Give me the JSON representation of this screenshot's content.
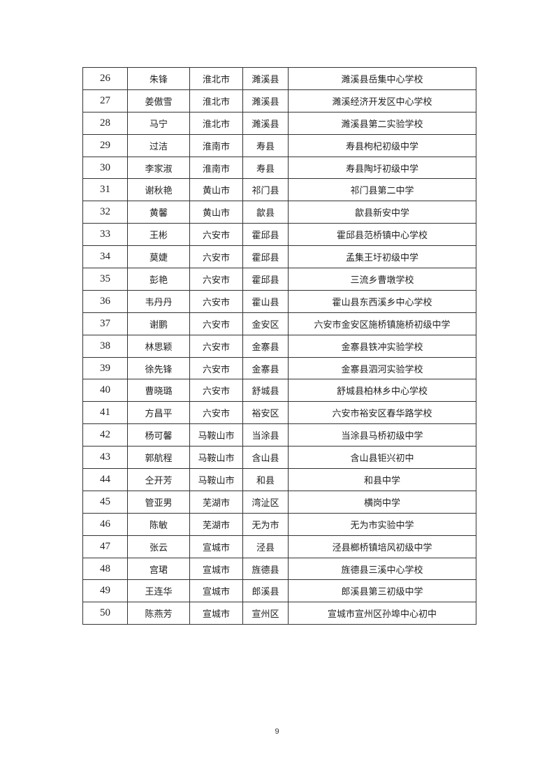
{
  "table": {
    "rows": [
      [
        "26",
        "朱锋",
        "淮北市",
        "濉溪县",
        "濉溪县岳集中心学校"
      ],
      [
        "27",
        "姜傲雪",
        "淮北市",
        "濉溪县",
        "濉溪经济开发区中心学校"
      ],
      [
        "28",
        "马宁",
        "淮北市",
        "濉溪县",
        "濉溪县第二实验学校"
      ],
      [
        "29",
        "过洁",
        "淮南市",
        "寿县",
        "寿县枸杞初级中学"
      ],
      [
        "30",
        "李家淑",
        "淮南市",
        "寿县",
        "寿县陶圩初级中学"
      ],
      [
        "31",
        "谢秋艳",
        "黄山市",
        "祁门县",
        "祁门县第二中学"
      ],
      [
        "32",
        "黄馨",
        "黄山市",
        "歙县",
        "歙县新安中学"
      ],
      [
        "33",
        "王彬",
        "六安市",
        "霍邱县",
        "霍邱县范桥镇中心学校"
      ],
      [
        "34",
        "莫婕",
        "六安市",
        "霍邱县",
        "孟集王圩初级中学"
      ],
      [
        "35",
        "彭艳",
        "六安市",
        "霍邱县",
        "三流乡曹墩学校"
      ],
      [
        "36",
        "韦丹丹",
        "六安市",
        "霍山县",
        "霍山县东西溪乡中心学校"
      ],
      [
        "37",
        "谢鹏",
        "六安市",
        "金安区",
        "六安市金安区施桥镇施桥初级中学"
      ],
      [
        "38",
        "林思颖",
        "六安市",
        "金寨县",
        "金寨县铁冲实验学校"
      ],
      [
        "39",
        "徐先锋",
        "六安市",
        "金寨县",
        "金寨县泗河实验学校"
      ],
      [
        "40",
        "曹晓璐",
        "六安市",
        "舒城县",
        "舒城县柏林乡中心学校"
      ],
      [
        "41",
        "方昌平",
        "六安市",
        "裕安区",
        "六安市裕安区春华路学校"
      ],
      [
        "42",
        "杨可馨",
        "马鞍山市",
        "当涂县",
        "当涂县马桥初级中学"
      ],
      [
        "43",
        "郭航程",
        "马鞍山市",
        "含山县",
        "含山县钜兴初中"
      ],
      [
        "44",
        "仝开芳",
        "马鞍山市",
        "和县",
        "和县中学"
      ],
      [
        "45",
        "管亚男",
        "芜湖市",
        "湾沚区",
        "横岗中学"
      ],
      [
        "46",
        "陈敏",
        "芜湖市",
        "无为市",
        "无为市实验中学"
      ],
      [
        "47",
        "张云",
        "宣城市",
        "泾县",
        "泾县榔桥镇培风初级中学"
      ],
      [
        "48",
        "宫珺",
        "宣城市",
        "旌德县",
        "旌德县三溪中心学校"
      ],
      [
        "49",
        "王连华",
        "宣城市",
        "郎溪县",
        "郎溪县第三初级中学"
      ],
      [
        "50",
        "陈燕芳",
        "宣城市",
        "宣州区",
        "宣城市宣州区孙埠中心初中"
      ]
    ]
  },
  "page_number": "9"
}
